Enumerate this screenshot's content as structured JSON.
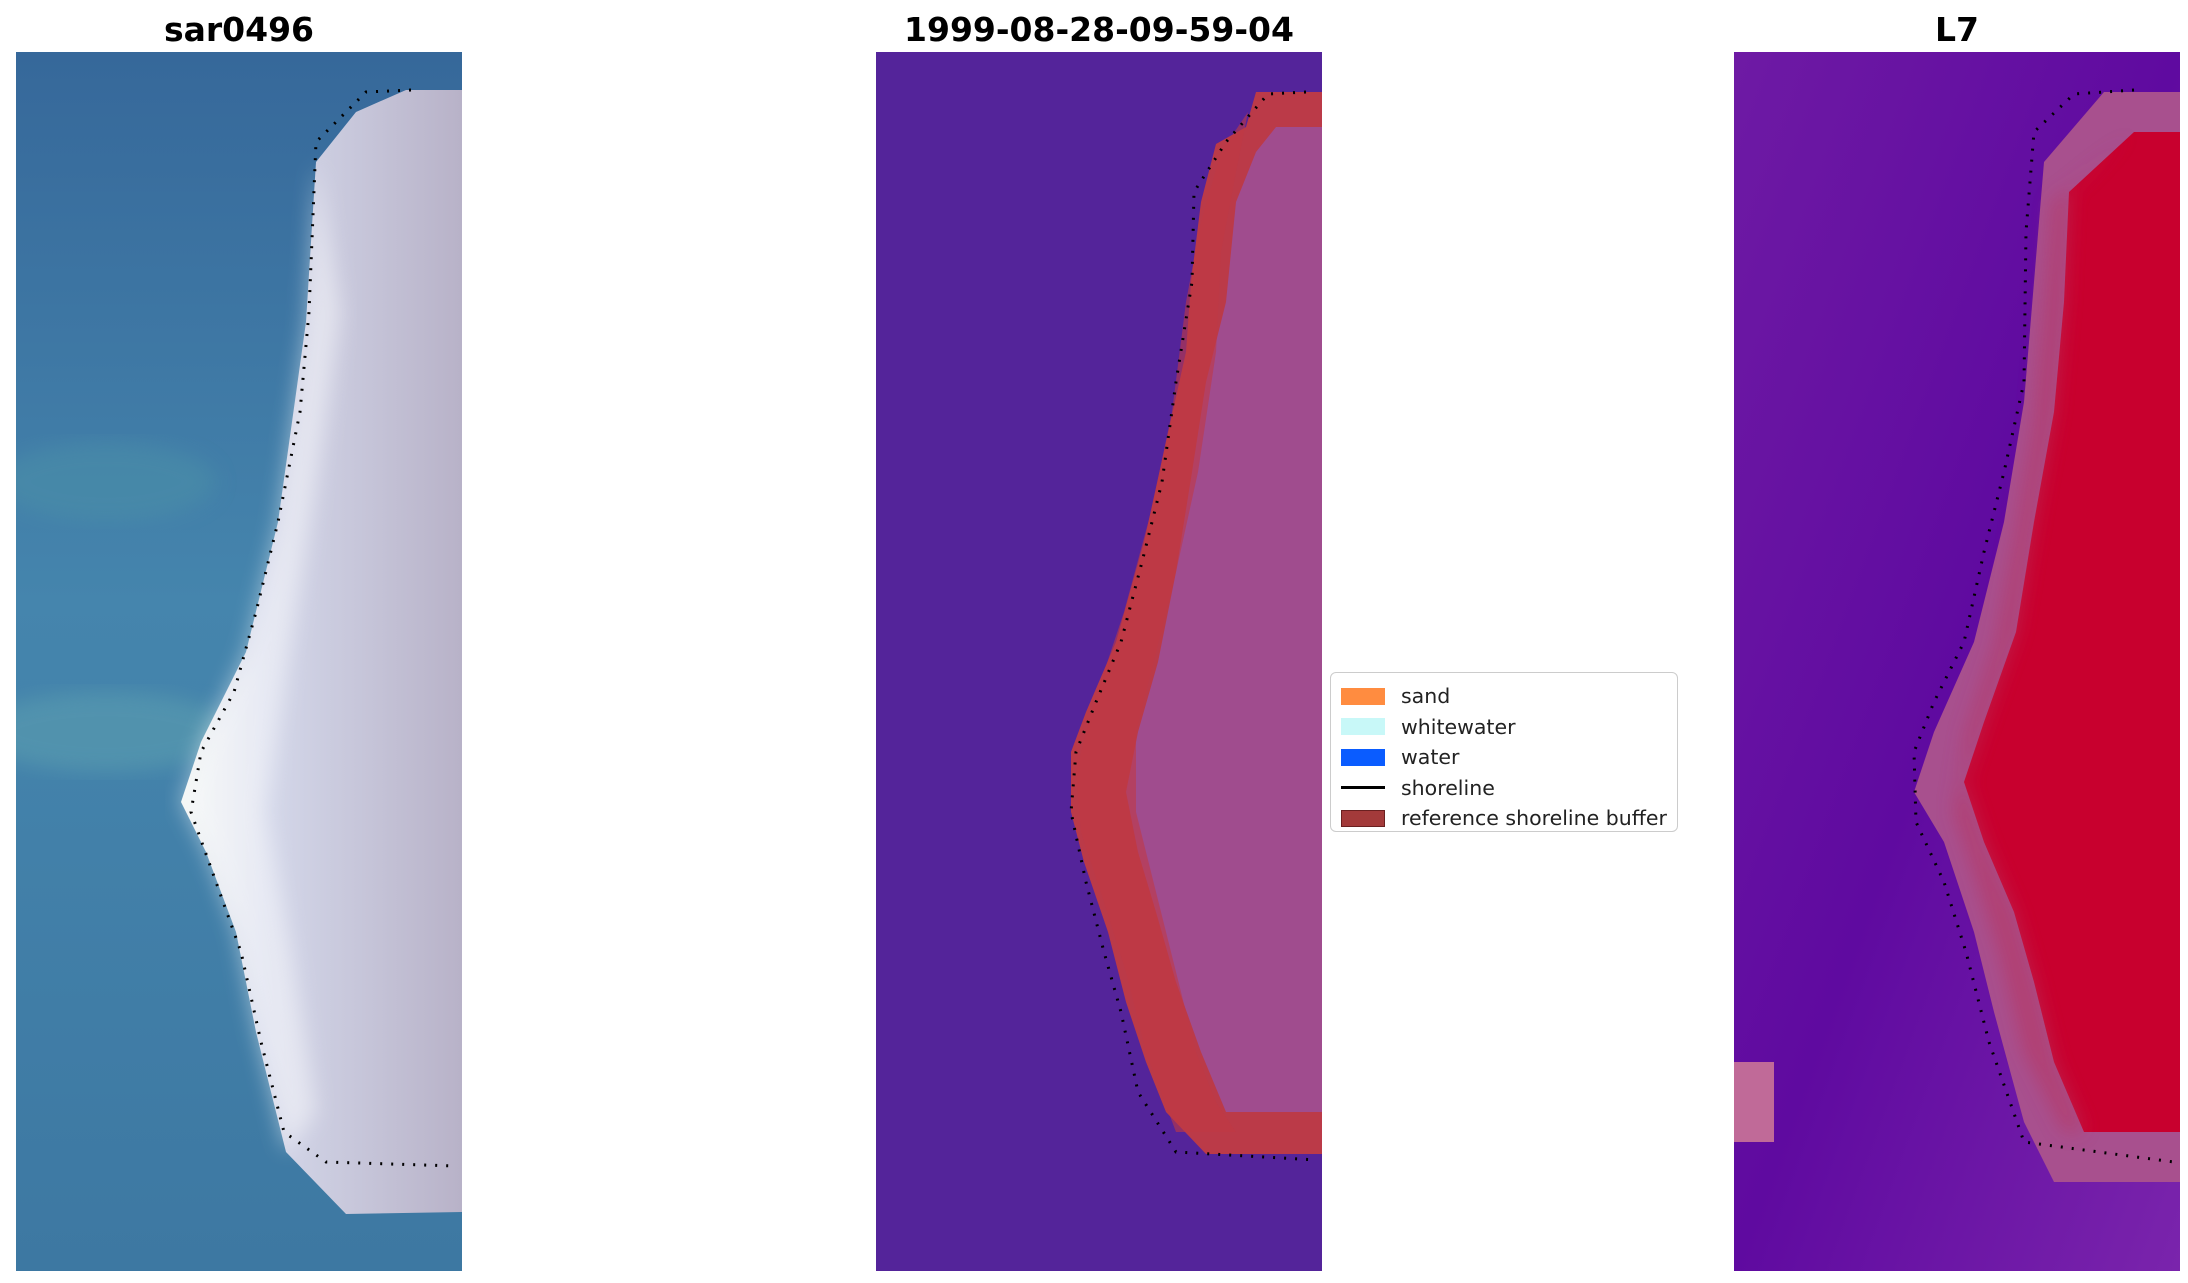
{
  "panels": [
    {
      "title": "sar0496",
      "kind": "rgb_image"
    },
    {
      "title": "1999-08-28-09-59-04",
      "kind": "classified_image"
    },
    {
      "title": "L7",
      "kind": "index_image"
    }
  ],
  "legend": {
    "items": [
      {
        "label": "sand",
        "color": "#ff8c40",
        "style": "patch"
      },
      {
        "label": "whitewater",
        "color": "#c8f8f8",
        "style": "patch"
      },
      {
        "label": "water",
        "color": "#0a5cff",
        "style": "patch"
      },
      {
        "label": "shoreline",
        "color": "#000000",
        "style": "line"
      },
      {
        "label": "reference shoreline buffer",
        "color": "#a33a3a",
        "style": "patch"
      }
    ]
  },
  "colors": {
    "rgb_water": "#3f7aa6",
    "rgb_sand": "#c9c8dc",
    "class_background": "#54249a",
    "class_buffer": "#bb3a48",
    "class_land": "#a04c8e",
    "index_low": "#6a14a0",
    "index_high": "#c8002e"
  }
}
